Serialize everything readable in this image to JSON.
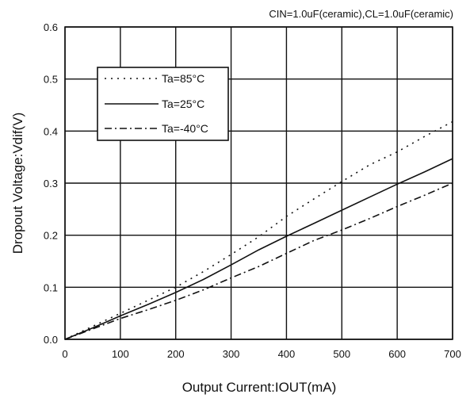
{
  "chart_data": {
    "type": "line",
    "title": "CIN=1.0uF(ceramic),CL=1.0uF(ceramic)",
    "xlabel": "Output Current:IOUT(mA)",
    "ylabel": "Dropout Voltage:Vdif(V)",
    "xlim": [
      0,
      700
    ],
    "ylim": [
      0,
      0.6
    ],
    "xticks": [
      0,
      100,
      200,
      300,
      400,
      500,
      600,
      700
    ],
    "yticks": [
      0.0,
      0.1,
      0.2,
      0.3,
      0.4,
      0.5,
      0.6
    ],
    "ytick_labels": [
      "0.0",
      "0.1",
      "0.2",
      "0.3",
      "0.4",
      "0.5",
      "0.6"
    ],
    "grid": true,
    "legend_position": "top-left",
    "series": [
      {
        "name": "Ta=85°C",
        "style": "dotted",
        "x": [
          0,
          50,
          100,
          150,
          200,
          250,
          300,
          350,
          400,
          450,
          500,
          550,
          600,
          650,
          700
        ],
        "y": [
          0,
          0.025,
          0.05,
          0.075,
          0.1,
          0.13,
          0.163,
          0.197,
          0.236,
          0.27,
          0.303,
          0.335,
          0.36,
          0.39,
          0.418
        ]
      },
      {
        "name": "Ta=25°C",
        "style": "solid",
        "x": [
          0,
          50,
          100,
          150,
          200,
          250,
          300,
          350,
          400,
          450,
          500,
          550,
          600,
          650,
          700
        ],
        "y": [
          0,
          0.022,
          0.045,
          0.067,
          0.09,
          0.115,
          0.143,
          0.172,
          0.198,
          0.223,
          0.248,
          0.273,
          0.298,
          0.322,
          0.347
        ]
      },
      {
        "name": "Ta=-40°C",
        "style": "dashdot",
        "x": [
          0,
          50,
          100,
          150,
          200,
          250,
          300,
          350,
          400,
          450,
          500,
          550,
          600,
          650,
          700
        ],
        "y": [
          0,
          0.02,
          0.04,
          0.057,
          0.075,
          0.095,
          0.118,
          0.14,
          0.165,
          0.19,
          0.21,
          0.232,
          0.255,
          0.277,
          0.3
        ]
      }
    ]
  }
}
